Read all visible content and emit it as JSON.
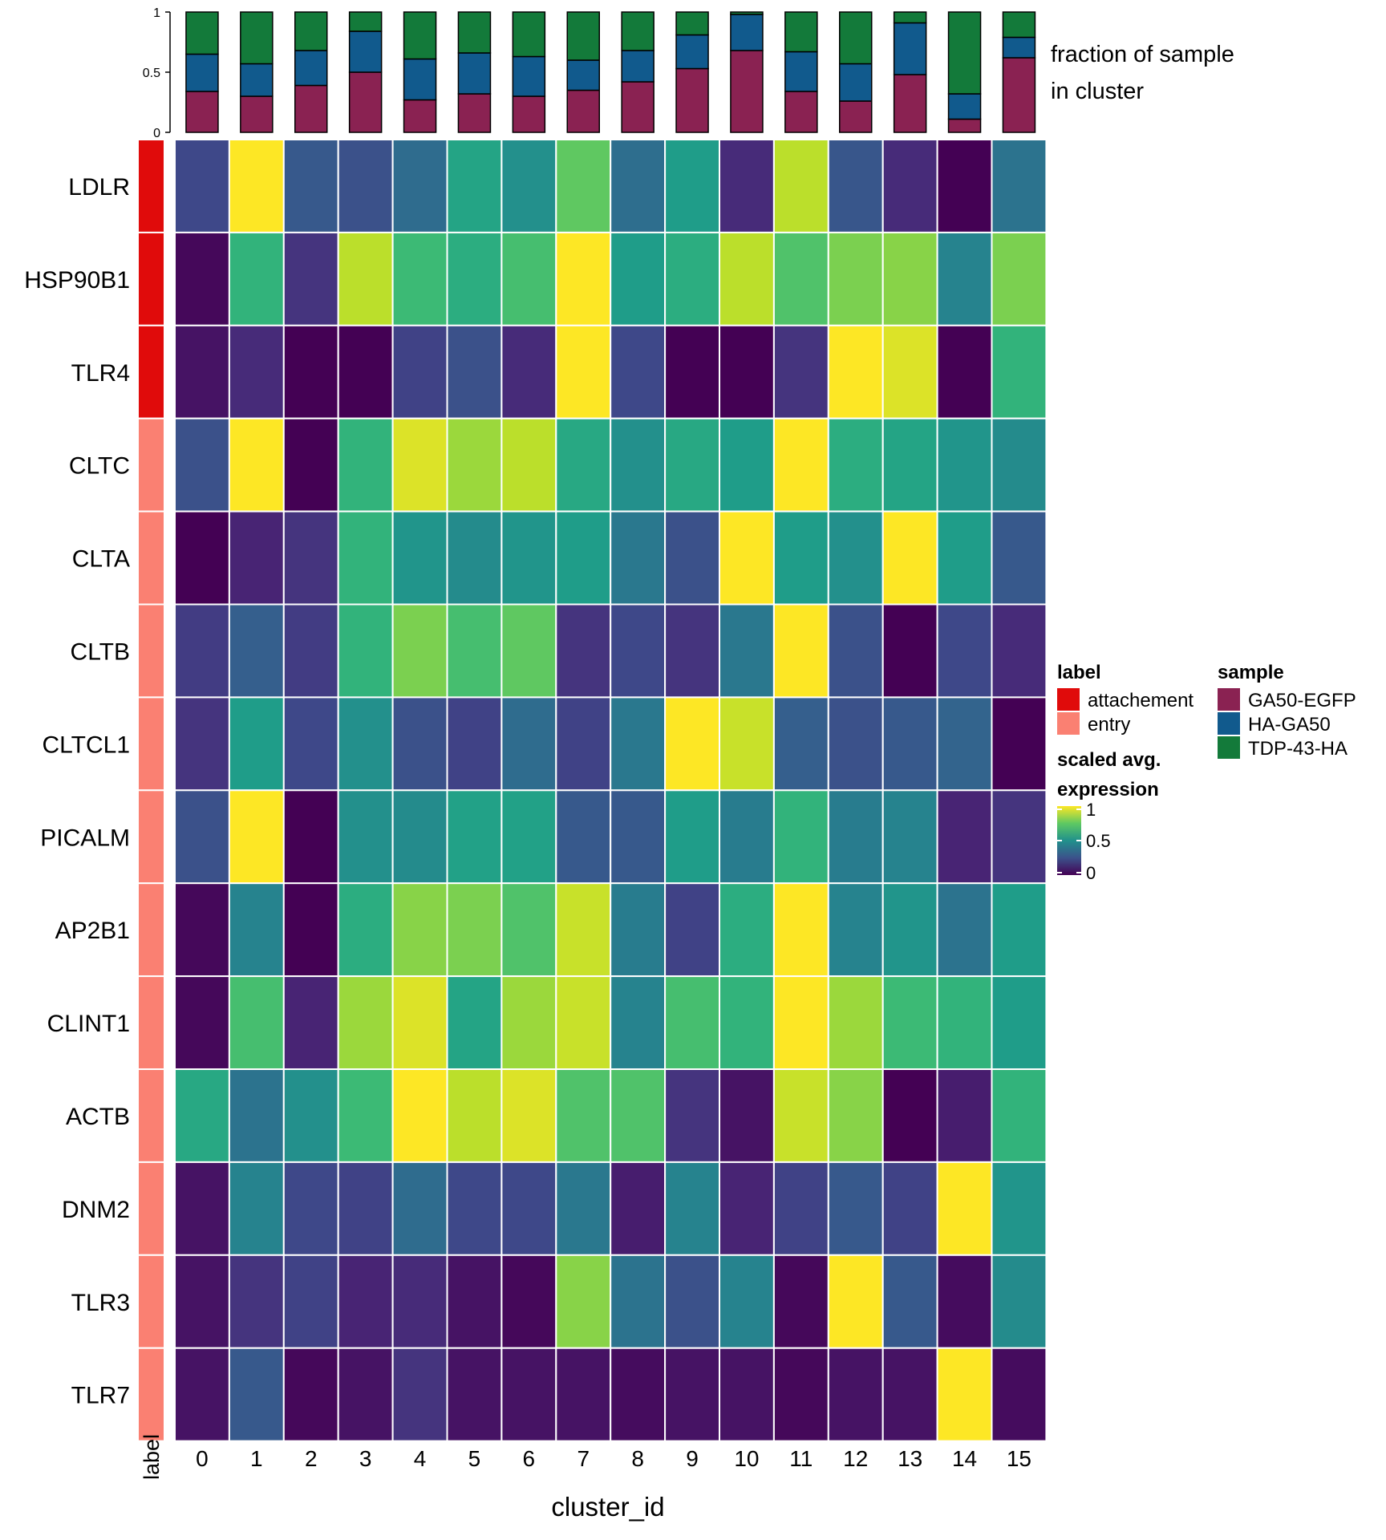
{
  "chart_data": {
    "type": "heatmap",
    "xlabel": "cluster_id",
    "label_axis_text": "label",
    "clusters": [
      "0",
      "1",
      "2",
      "3",
      "4",
      "5",
      "6",
      "7",
      "8",
      "9",
      "10",
      "11",
      "12",
      "13",
      "14",
      "15"
    ],
    "genes": [
      "LDLR",
      "HSP90B1",
      "TLR4",
      "CLTC",
      "CLTA",
      "CLTB",
      "CLTCL1",
      "PICALM",
      "AP2B1",
      "CLINT1",
      "ACTB",
      "DNM2",
      "TLR3",
      "TLR7"
    ],
    "gene_labels": [
      "attachement",
      "attachement",
      "attachement",
      "entry",
      "entry",
      "entry",
      "entry",
      "entry",
      "entry",
      "entry",
      "entry",
      "entry",
      "entry",
      "entry"
    ],
    "label_colors": {
      "attachement": "#e00b0b",
      "entry": "#fa8072"
    },
    "matrix": [
      [
        0.22,
        1.0,
        0.28,
        0.25,
        0.35,
        0.58,
        0.5,
        0.75,
        0.36,
        0.55,
        0.12,
        0.9,
        0.27,
        0.12,
        0.0,
        0.38
      ],
      [
        0.02,
        0.65,
        0.15,
        0.9,
        0.68,
        0.62,
        0.7,
        1.0,
        0.55,
        0.62,
        0.9,
        0.72,
        0.8,
        0.82,
        0.45,
        0.8
      ],
      [
        0.05,
        0.12,
        0.0,
        0.0,
        0.2,
        0.25,
        0.12,
        1.0,
        0.22,
        0.0,
        0.0,
        0.15,
        1.0,
        0.95,
        0.0,
        0.65
      ],
      [
        0.25,
        1.0,
        0.0,
        0.65,
        0.95,
        0.85,
        0.9,
        0.6,
        0.5,
        0.6,
        0.55,
        1.0,
        0.62,
        0.58,
        0.52,
        0.48
      ],
      [
        0.0,
        0.1,
        0.15,
        0.65,
        0.52,
        0.48,
        0.52,
        0.55,
        0.4,
        0.25,
        1.0,
        0.55,
        0.5,
        1.0,
        0.55,
        0.28
      ],
      [
        0.18,
        0.3,
        0.18,
        0.65,
        0.8,
        0.7,
        0.75,
        0.15,
        0.22,
        0.15,
        0.4,
        1.0,
        0.25,
        0.0,
        0.22,
        0.12
      ],
      [
        0.15,
        0.55,
        0.22,
        0.5,
        0.25,
        0.2,
        0.35,
        0.2,
        0.4,
        1.0,
        0.92,
        0.3,
        0.25,
        0.28,
        0.32,
        0.0
      ],
      [
        0.25,
        1.0,
        0.0,
        0.5,
        0.48,
        0.57,
        0.57,
        0.28,
        0.28,
        0.55,
        0.42,
        0.65,
        0.42,
        0.45,
        0.1,
        0.15
      ],
      [
        0.02,
        0.45,
        0.0,
        0.62,
        0.82,
        0.8,
        0.72,
        0.92,
        0.42,
        0.2,
        0.62,
        1.0,
        0.45,
        0.52,
        0.38,
        0.55
      ],
      [
        0.02,
        0.7,
        0.1,
        0.85,
        0.95,
        0.58,
        0.85,
        0.92,
        0.45,
        0.7,
        0.65,
        1.0,
        0.85,
        0.68,
        0.65,
        0.55
      ],
      [
        0.6,
        0.38,
        0.5,
        0.68,
        1.0,
        0.9,
        0.95,
        0.72,
        0.72,
        0.15,
        0.05,
        0.92,
        0.82,
        0.0,
        0.08,
        0.65
      ],
      [
        0.05,
        0.45,
        0.22,
        0.2,
        0.35,
        0.22,
        0.22,
        0.4,
        0.08,
        0.45,
        0.1,
        0.2,
        0.28,
        0.2,
        1.0,
        0.52
      ],
      [
        0.05,
        0.15,
        0.2,
        0.1,
        0.12,
        0.05,
        0.02,
        0.82,
        0.38,
        0.25,
        0.45,
        0.02,
        1.0,
        0.28,
        0.03,
        0.48
      ],
      [
        0.05,
        0.28,
        0.02,
        0.05,
        0.15,
        0.05,
        0.05,
        0.05,
        0.03,
        0.05,
        0.05,
        0.02,
        0.05,
        0.05,
        1.0,
        0.03
      ]
    ],
    "fraction": {
      "title_line1": "fraction of sample",
      "title_line2": "in cluster",
      "ylim": [
        0,
        1
      ],
      "yticks": [
        "0",
        "0.5",
        "1"
      ],
      "series": [
        {
          "name": "GA50-EGFP",
          "color": "#8a2252",
          "values": [
            0.34,
            0.3,
            0.39,
            0.5,
            0.27,
            0.32,
            0.3,
            0.35,
            0.42,
            0.53,
            0.68,
            0.34,
            0.26,
            0.48,
            0.11,
            0.62
          ]
        },
        {
          "name": "HA-GA50",
          "color": "#115a8d",
          "values": [
            0.31,
            0.27,
            0.29,
            0.34,
            0.34,
            0.34,
            0.33,
            0.25,
            0.26,
            0.28,
            0.3,
            0.33,
            0.31,
            0.43,
            0.21,
            0.17
          ]
        },
        {
          "name": "TDP-43-HA",
          "color": "#137a3a",
          "values": [
            0.35,
            0.43,
            0.32,
            0.16,
            0.39,
            0.34,
            0.37,
            0.4,
            0.32,
            0.19,
            0.02,
            0.33,
            0.43,
            0.09,
            0.68,
            0.21
          ]
        }
      ]
    },
    "legend": {
      "label_title": "label",
      "label_items": [
        "attachement",
        "entry"
      ],
      "sample_title": "sample",
      "sample_items": [
        "GA50-EGFP",
        "HA-GA50",
        "TDP-43-HA"
      ],
      "expr_title_line1": "scaled avg.",
      "expr_title_line2": "expression",
      "expr_ticks": [
        "1",
        "0.5",
        "0"
      ]
    }
  }
}
